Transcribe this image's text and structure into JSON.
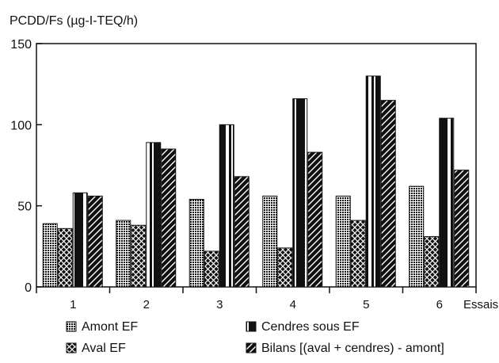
{
  "chart_data": {
    "type": "bar",
    "title": "PCDD/Fs (µg-I-TEQ/h)",
    "xlabel": "Essais",
    "ylabel": "",
    "ylim": [
      0,
      150
    ],
    "yticks": [
      0,
      50,
      100,
      150
    ],
    "grid": false,
    "legend_position": "bottom",
    "categories": [
      "1",
      "2",
      "3",
      "4",
      "5",
      "6"
    ],
    "series": [
      {
        "name": "Amont EF",
        "pattern": "dots",
        "values": [
          39,
          41,
          54,
          56,
          56,
          62
        ]
      },
      {
        "name": "Aval EF",
        "pattern": "cross",
        "values": [
          36,
          38,
          22,
          24,
          41,
          31
        ]
      },
      {
        "name": "Cendres sous EF",
        "pattern": "vstripe",
        "values": [
          58,
          89,
          100,
          116,
          130,
          104
        ]
      },
      {
        "name": "Bilans [(aval + cendres) - amont]",
        "pattern": "diag",
        "values": [
          56,
          85,
          68,
          83,
          115,
          72
        ]
      }
    ]
  }
}
